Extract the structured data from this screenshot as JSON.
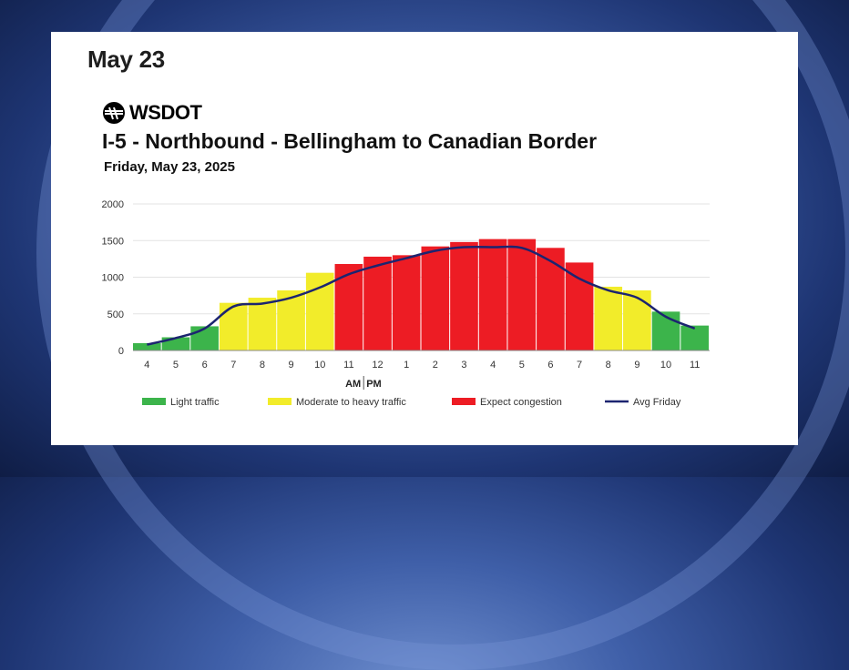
{
  "header": {
    "date": "May 23"
  },
  "logo": {
    "text": "WSDOT"
  },
  "chart_data": {
    "type": "bar",
    "title": "I-5 - Northbound - Bellingham to Canadian Border",
    "subtitle": "Friday, May 23, 2025",
    "categories": [
      "4",
      "5",
      "6",
      "7",
      "8",
      "9",
      "10",
      "11",
      "12",
      "1",
      "2",
      "3",
      "4",
      "5",
      "6",
      "7",
      "8",
      "9",
      "10",
      "11"
    ],
    "values": [
      100,
      180,
      330,
      650,
      720,
      820,
      1060,
      1180,
      1280,
      1300,
      1420,
      1480,
      1520,
      1520,
      1400,
      1200,
      870,
      820,
      530,
      340
    ],
    "levels": [
      "light",
      "light",
      "light",
      "moderate",
      "moderate",
      "moderate",
      "moderate",
      "congestion",
      "congestion",
      "congestion",
      "congestion",
      "congestion",
      "congestion",
      "congestion",
      "congestion",
      "congestion",
      "moderate",
      "moderate",
      "light",
      "light"
    ],
    "avg_series": {
      "name": "Avg Friday",
      "values": [
        80,
        170,
        300,
        600,
        640,
        720,
        860,
        1040,
        1160,
        1260,
        1360,
        1410,
        1410,
        1400,
        1220,
        980,
        820,
        720,
        460,
        300
      ]
    },
    "ylim": [
      0,
      2000
    ],
    "yticks": [
      "0",
      "500",
      "1000",
      "1500",
      "2000"
    ],
    "ampm_label": {
      "am": "AM",
      "pm": "PM"
    },
    "legend": [
      {
        "key": "light",
        "label": "Light traffic",
        "color": "#3cb44b"
      },
      {
        "key": "moderate",
        "label": "Moderate to heavy traffic",
        "color": "#f2ec2a"
      },
      {
        "key": "congestion",
        "label": "Expect congestion",
        "color": "#ed1c24"
      },
      {
        "key": "avg",
        "label": "Avg Friday",
        "color": "#1c2470"
      }
    ],
    "grid": true
  }
}
